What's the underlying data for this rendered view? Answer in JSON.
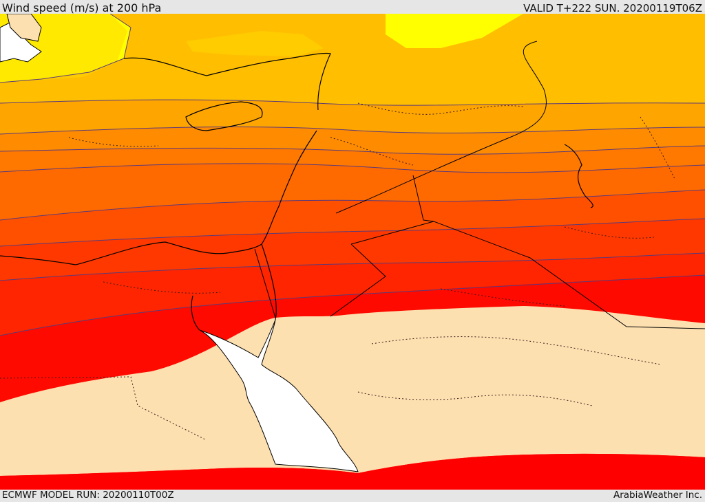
{
  "header": {
    "title": "Wind speed (m/s) at 200 hPa",
    "valid": "VALID T+222 SUN. 20200119T06Z"
  },
  "footer": {
    "model_run": "ECMWF MODEL RUN: 20200110T00Z",
    "brand": "ArabiaWeather Inc."
  },
  "map": {
    "variable": "wind speed",
    "level": "200 hPa",
    "units": "m/s",
    "palette": [
      "#ffff00",
      "#ffd700",
      "#ffbf00",
      "#ffa500",
      "#ff8c00",
      "#ff7000",
      "#ff5000",
      "#ff3800",
      "#ff1500",
      "#ff0000",
      "#fde0b0"
    ],
    "contour_color": "#5a3a7a",
    "sea_color": "#ffffff",
    "coastline_color": "#000000"
  }
}
